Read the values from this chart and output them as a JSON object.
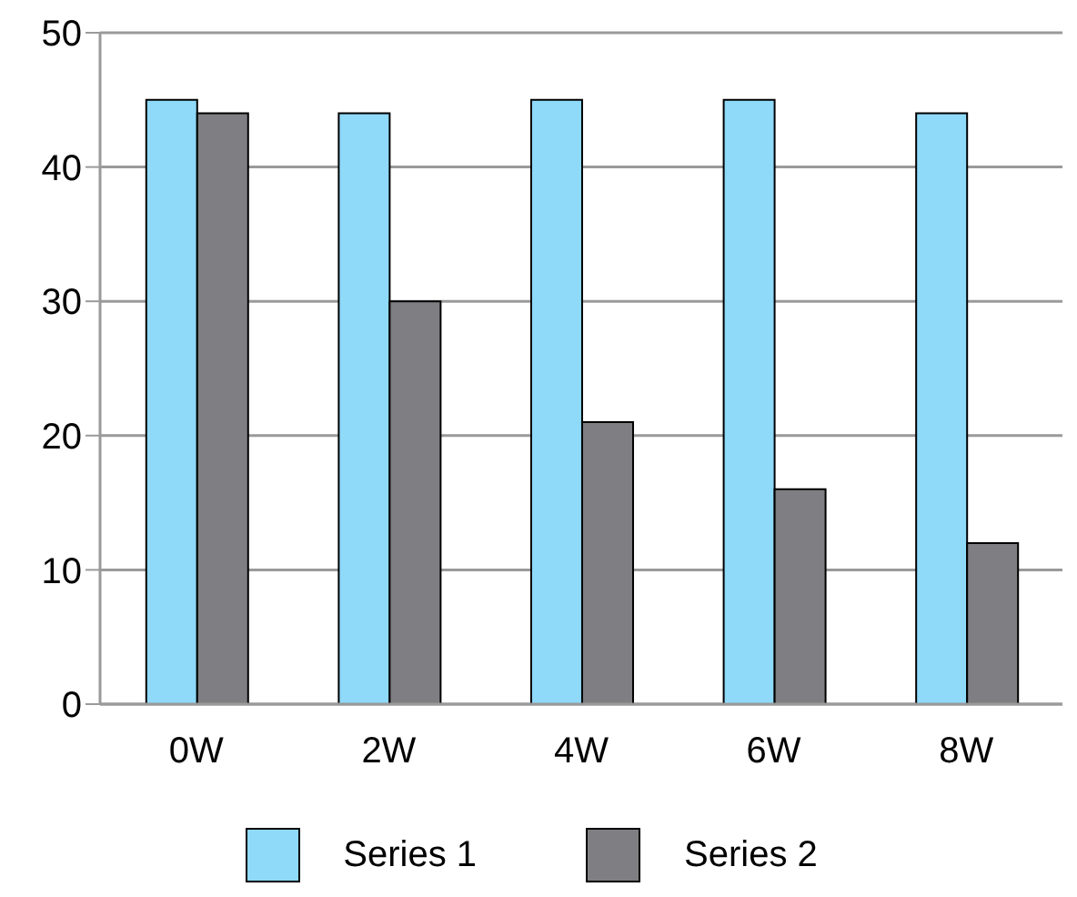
{
  "chart_data": {
    "type": "bar",
    "categories": [
      "0W",
      "2W",
      "4W",
      "6W",
      "8W"
    ],
    "series": [
      {
        "name": "Series 1",
        "color": "#8fd9f9",
        "values": [
          45,
          44,
          45,
          45,
          44
        ]
      },
      {
        "name": "Series 2",
        "color": "#7f7f83",
        "values": [
          44,
          30,
          21,
          16,
          12
        ]
      }
    ],
    "ylim": [
      0,
      50
    ],
    "yticks": [
      0,
      10,
      20,
      30,
      40,
      50
    ],
    "grid": "y",
    "legend": "bottom"
  }
}
